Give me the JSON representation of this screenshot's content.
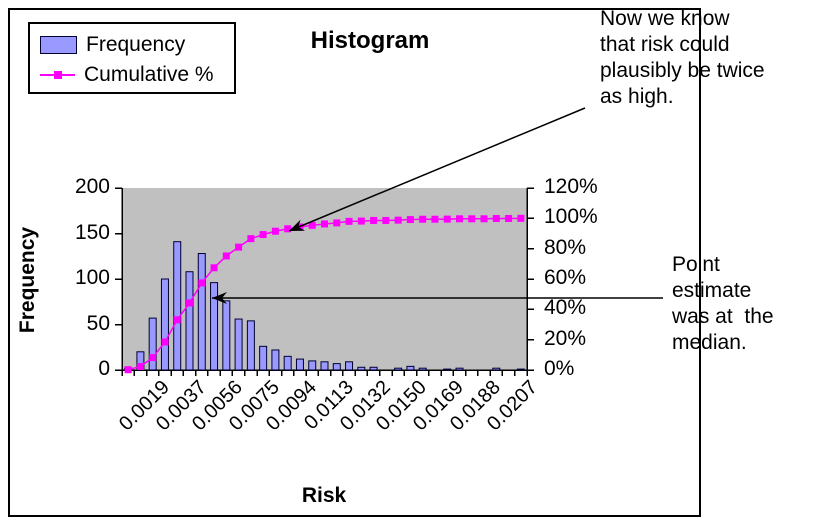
{
  "chart": {
    "title": "Histogram",
    "legend": {
      "items": [
        {
          "label": "Frequency",
          "swatch": "blue-bar-swatch"
        },
        {
          "label": "Cumulative %",
          "swatch": "magenta-line-marker-swatch"
        }
      ]
    },
    "y_left_axis": {
      "title": "Frequency",
      "ticks": [
        "0",
        "50",
        "100",
        "150",
        "200"
      ]
    },
    "y_right_axis": {
      "ticks": [
        "0%",
        "20%",
        "40%",
        "60%",
        "80%",
        "100%",
        "120%"
      ]
    },
    "x_axis": {
      "title": "Risk",
      "labels": [
        "0.0019",
        "0.0037",
        "0.0056",
        "0.0075",
        "0.0094",
        "0.0113",
        "0.0132",
        "0.0150",
        "0.0169",
        "0.0188",
        "0.0207"
      ]
    }
  },
  "annotations": {
    "top": {
      "lines": [
        "Now we know",
        "that risk could",
        "plausibly be twice",
        "as high."
      ]
    },
    "right": {
      "lines": [
        "Point",
        "estimate",
        "was at  the",
        "median."
      ]
    }
  },
  "chart_data": {
    "type": "bar",
    "subtype": "histogram-with-cumulative-line (pareto)",
    "title": "Histogram",
    "xlabel": "Risk",
    "ylabel_left": "Frequency",
    "ylabel_right": "Cumulative %",
    "ylim_left": [
      0,
      200
    ],
    "ylim_right_percent": [
      0,
      120
    ],
    "grid": false,
    "plot_background": "#C0C0C0",
    "legend_position": "top-left",
    "n_bins": 33,
    "x_tick_labels": [
      "0.0019",
      "0.0037",
      "0.0056",
      "0.0075",
      "0.0094",
      "0.0113",
      "0.0132",
      "0.0150",
      "0.0169",
      "0.0188",
      "0.0207"
    ],
    "x_labels_every_n_bins": 3,
    "x_labeled_bin_indices": [
      2,
      5,
      8,
      11,
      14,
      17,
      20,
      23,
      26,
      29,
      32
    ],
    "series": [
      {
        "name": "Frequency",
        "type": "bar",
        "axis": "left",
        "values": [
          2,
          20,
          57,
          100,
          141,
          108,
          128,
          96,
          76,
          56,
          54,
          26,
          22,
          15,
          12,
          10,
          9,
          7,
          9,
          3,
          3,
          0,
          2,
          4,
          2,
          0,
          1,
          2,
          0,
          0,
          2,
          0,
          1
        ]
      },
      {
        "name": "Cumulative %",
        "type": "line",
        "axis": "right",
        "values_percent": [
          0.2,
          2.3,
          8.2,
          18.5,
          33.1,
          44.2,
          57.4,
          67.4,
          75.2,
          81.0,
          86.6,
          89.3,
          91.5,
          93.1,
          94.3,
          95.4,
          96.3,
          97.0,
          98.0,
          98.2,
          98.6,
          98.6,
          98.8,
          99.2,
          99.4,
          99.4,
          99.5,
          99.7,
          99.7,
          99.7,
          99.9,
          99.9,
          100.0
        ]
      }
    ]
  },
  "colors": {
    "bar_fill": "#9999FF",
    "bar_border": "#000033",
    "cumulative_line": "#FF00FF",
    "plot_background": "#C0C0C0",
    "axis": "#000000",
    "text": "#000000",
    "chart_background": "#FFFFFF"
  }
}
